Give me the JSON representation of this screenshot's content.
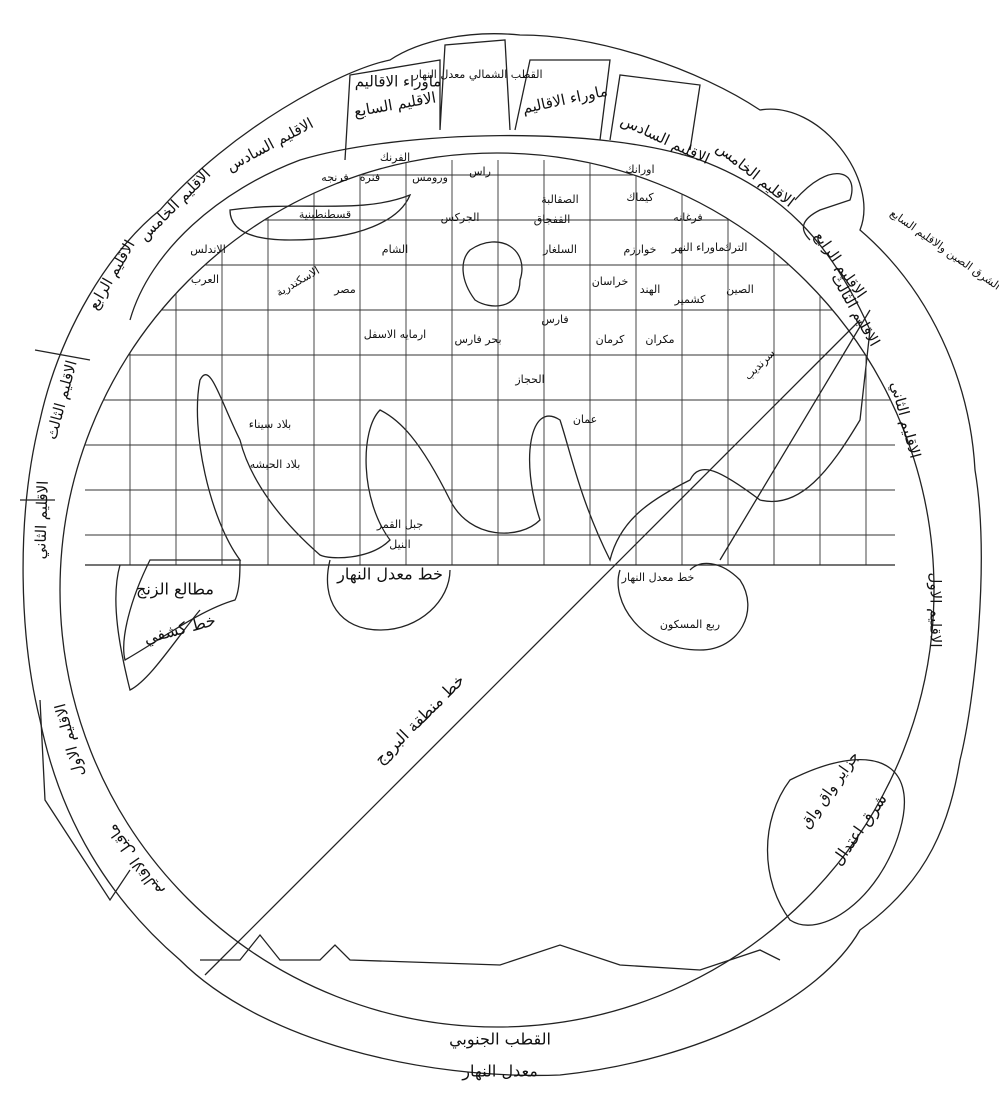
{
  "title_south": "القطب الجنوبي",
  "subtitle_south": "معدل النهار",
  "ring_labels": [
    "الاقليم السادس",
    "الاقليم الخامس",
    "الاقليم الرابع",
    "الاقليم الثالث",
    "الاقليم الثاني",
    "الاقليم الاول",
    "ماقبل الاقاليم",
    "الاقليم السابع",
    "ماوراء الاقاليم",
    "القطب الشمالي معدل النهار",
    "ماوراء الاقاليم",
    "الاقليم السادس",
    "الاقليم الخامس",
    "الاقليم الرابع",
    "الاقليم الثالث",
    "الاقليم الثاني",
    "الاقليم الاول",
    "جزاير واق واق",
    "شرق اعتدال",
    "الشرق الصين والاقليم السابع"
  ],
  "map_labels": [
    "الفرنك",
    "فنره",
    "فرنجه",
    "ورومس",
    "راس",
    "الصقالبة",
    "القفجاق",
    "الجركس",
    "اورانك",
    "كيماك",
    "فرغانه",
    "خوارزم",
    "السلغار",
    "الشام",
    "الاسكندرية",
    "مصر",
    "العرب",
    "الاندلس",
    "قسطنطينية",
    "بلاد سيناء",
    "بلاد الحبشه",
    "جبل القمر",
    "النيل",
    "مطالع الزنج",
    "خط كشفي",
    "خط معدل النهار",
    "خط معدل النهار",
    "خط منطقة البروج",
    "ربع المسكون",
    "خراسان",
    "فارس",
    "كرمان",
    "مكران",
    "الصين",
    "كشمير",
    "الهند",
    "بحر فارس",
    "عمان",
    "الحجاز",
    "ارمايه الاسفل",
    "الترك",
    "ماوراء النهر",
    "سرنديب"
  ]
}
